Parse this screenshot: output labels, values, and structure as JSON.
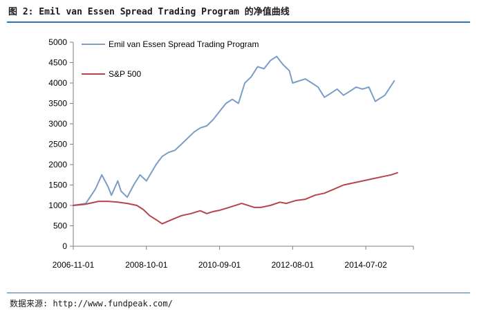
{
  "header": {
    "title": "图 2: Emil van Essen Spread Trading Program 的净值曲线"
  },
  "footer": {
    "source": "数据来源: http://www.fundpeak.com/"
  },
  "colors": {
    "series_blue": "#7a9cc6",
    "series_red": "#b5454a",
    "accent_rule": "#2e74b5"
  },
  "chart_data": {
    "type": "line",
    "title": "",
    "xlabel": "",
    "ylabel": "",
    "ylim": [
      0,
      5000
    ],
    "yticks": [
      0,
      500,
      1000,
      1500,
      2000,
      2500,
      3000,
      3500,
      4000,
      4500,
      5000
    ],
    "xlim": [
      "2006-11-01",
      "2015-10-01"
    ],
    "xticks": [
      "2006-11-01",
      "2008-10-01",
      "2010-09-01",
      "2012-08-01",
      "2014-07-02"
    ],
    "grid": false,
    "legend": "top-left",
    "series": [
      {
        "name": "Emil van Essen Spread Trading Program",
        "color": "#7a9cc6",
        "points": [
          [
            "2006-11-01",
            1000
          ],
          [
            "2007-03-01",
            1050
          ],
          [
            "2007-06-01",
            1400
          ],
          [
            "2007-08-01",
            1750
          ],
          [
            "2007-10-01",
            1450
          ],
          [
            "2007-11-01",
            1250
          ],
          [
            "2008-01-01",
            1600
          ],
          [
            "2008-02-01",
            1350
          ],
          [
            "2008-04-01",
            1200
          ],
          [
            "2008-06-01",
            1500
          ],
          [
            "2008-08-01",
            1750
          ],
          [
            "2008-10-01",
            1600
          ],
          [
            "2009-01-01",
            2000
          ],
          [
            "2009-03-01",
            2200
          ],
          [
            "2009-05-01",
            2300
          ],
          [
            "2009-07-01",
            2350
          ],
          [
            "2009-09-01",
            2500
          ],
          [
            "2009-11-01",
            2650
          ],
          [
            "2010-01-01",
            2800
          ],
          [
            "2010-03-01",
            2900
          ],
          [
            "2010-05-01",
            2950
          ],
          [
            "2010-07-01",
            3100
          ],
          [
            "2010-09-01",
            3300
          ],
          [
            "2010-11-01",
            3500
          ],
          [
            "2011-01-01",
            3600
          ],
          [
            "2011-03-01",
            3500
          ],
          [
            "2011-05-01",
            4000
          ],
          [
            "2011-07-01",
            4150
          ],
          [
            "2011-09-01",
            4400
          ],
          [
            "2011-11-01",
            4350
          ],
          [
            "2012-01-01",
            4550
          ],
          [
            "2012-03-01",
            4650
          ],
          [
            "2012-05-01",
            4450
          ],
          [
            "2012-07-01",
            4300
          ],
          [
            "2012-08-01",
            4000
          ],
          [
            "2012-10-01",
            4050
          ],
          [
            "2012-12-01",
            4100
          ],
          [
            "2013-02-01",
            4000
          ],
          [
            "2013-04-01",
            3900
          ],
          [
            "2013-06-01",
            3650
          ],
          [
            "2013-08-01",
            3750
          ],
          [
            "2013-10-01",
            3850
          ],
          [
            "2013-12-01",
            3700
          ],
          [
            "2014-02-01",
            3800
          ],
          [
            "2014-04-01",
            3900
          ],
          [
            "2014-06-01",
            3850
          ],
          [
            "2014-08-01",
            3900
          ],
          [
            "2014-10-01",
            3550
          ],
          [
            "2015-01-01",
            3700
          ],
          [
            "2015-04-01",
            4050
          ]
        ]
      },
      {
        "name": "S&P 500",
        "color": "#b5454a",
        "points": [
          [
            "2006-11-01",
            1000
          ],
          [
            "2007-03-01",
            1030
          ],
          [
            "2007-07-01",
            1100
          ],
          [
            "2007-10-01",
            1100
          ],
          [
            "2008-01-01",
            1080
          ],
          [
            "2008-04-01",
            1050
          ],
          [
            "2008-07-01",
            1000
          ],
          [
            "2008-09-01",
            900
          ],
          [
            "2008-11-01",
            750
          ],
          [
            "2009-01-01",
            650
          ],
          [
            "2009-03-01",
            550
          ],
          [
            "2009-06-01",
            650
          ],
          [
            "2009-09-01",
            750
          ],
          [
            "2009-12-01",
            800
          ],
          [
            "2010-03-01",
            870
          ],
          [
            "2010-05-01",
            800
          ],
          [
            "2010-07-01",
            850
          ],
          [
            "2010-09-01",
            880
          ],
          [
            "2010-12-01",
            950
          ],
          [
            "2011-04-01",
            1050
          ],
          [
            "2011-08-01",
            950
          ],
          [
            "2011-10-01",
            950
          ],
          [
            "2012-01-01",
            1000
          ],
          [
            "2012-04-01",
            1080
          ],
          [
            "2012-06-01",
            1050
          ],
          [
            "2012-09-01",
            1120
          ],
          [
            "2012-12-01",
            1150
          ],
          [
            "2013-03-01",
            1250
          ],
          [
            "2013-06-01",
            1300
          ],
          [
            "2013-09-01",
            1400
          ],
          [
            "2013-12-01",
            1500
          ],
          [
            "2014-03-01",
            1550
          ],
          [
            "2014-06-01",
            1600
          ],
          [
            "2014-09-01",
            1650
          ],
          [
            "2014-12-01",
            1700
          ],
          [
            "2015-03-01",
            1750
          ],
          [
            "2015-05-01",
            1800
          ]
        ]
      }
    ]
  }
}
